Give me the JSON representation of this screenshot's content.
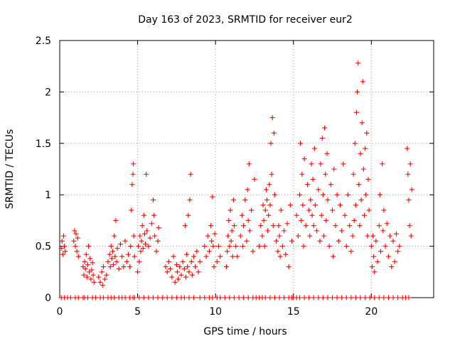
{
  "colors": {
    "series": "#ff0000",
    "axis": "#000000",
    "grid": "#a0a0a0",
    "background": "#ffffff"
  },
  "chart_data": {
    "type": "scatter",
    "title": "Day 163 of 2023, SRMTID for receiver eur2",
    "xlabel": "GPS time / hours",
    "ylabel": "SRMTID / TECUs",
    "xlim": [
      0,
      24
    ],
    "ylim": [
      0,
      2.5
    ],
    "xticks": [
      0,
      5,
      10,
      15,
      20
    ],
    "yticks": [
      0,
      0.5,
      1,
      1.5,
      2,
      2.5
    ],
    "xtick_labels": [
      "0",
      "5",
      "10",
      "15",
      "20"
    ],
    "ytick_labels": [
      "0",
      "0.5",
      "1",
      "1.5",
      "2",
      "2.5"
    ],
    "grid": true,
    "marker": "+",
    "series": [
      {
        "name": "SRMTID",
        "points": [
          [
            0.1,
            0.48
          ],
          [
            0.15,
            0.55
          ],
          [
            0.2,
            0.42
          ],
          [
            0.25,
            0.6
          ],
          [
            0.3,
            0.5
          ],
          [
            0.35,
            0.45
          ],
          [
            0.9,
            0.55
          ],
          [
            0.95,
            0.65
          ],
          [
            1.0,
            0.5
          ],
          [
            1.05,
            0.62
          ],
          [
            1.1,
            0.45
          ],
          [
            1.15,
            0.58
          ],
          [
            1.2,
            0.4
          ],
          [
            1.5,
            0.3
          ],
          [
            1.55,
            0.22
          ],
          [
            1.6,
            0.35
          ],
          [
            1.65,
            0.28
          ],
          [
            1.7,
            0.42
          ],
          [
            1.75,
            0.2
          ],
          [
            1.8,
            0.32
          ],
          [
            1.85,
            0.5
          ],
          [
            1.9,
            0.25
          ],
          [
            1.95,
            0.38
          ],
          [
            2.0,
            0.18
          ],
          [
            2.05,
            0.27
          ],
          [
            2.1,
            0.34
          ],
          [
            2.15,
            0.22
          ],
          [
            2.2,
            0.15
          ],
          [
            2.5,
            0.2
          ],
          [
            2.6,
            0.15
          ],
          [
            2.7,
            0.25
          ],
          [
            2.75,
            0.12
          ],
          [
            2.8,
            0.3
          ],
          [
            2.9,
            0.18
          ],
          [
            3.0,
            0.22
          ],
          [
            3.1,
            0.35
          ],
          [
            3.2,
            0.42
          ],
          [
            3.25,
            0.3
          ],
          [
            3.3,
            0.5
          ],
          [
            3.35,
            0.38
          ],
          [
            3.4,
            0.45
          ],
          [
            3.45,
            0.32
          ],
          [
            3.5,
            0.6
          ],
          [
            3.55,
            0.4
          ],
          [
            3.6,
            0.75
          ],
          [
            3.65,
            0.35
          ],
          [
            3.7,
            0.48
          ],
          [
            3.8,
            0.28
          ],
          [
            3.9,
            0.52
          ],
          [
            4.0,
            0.4
          ],
          [
            4.1,
            0.3
          ],
          [
            4.2,
            0.55
          ],
          [
            4.3,
            0.35
          ],
          [
            4.4,
            0.42
          ],
          [
            4.5,
            0.3
          ],
          [
            4.55,
            0.5
          ],
          [
            4.6,
            0.85
          ],
          [
            4.65,
            1.1
          ],
          [
            4.7,
            1.2
          ],
          [
            4.72,
            1.3
          ],
          [
            4.75,
            0.6
          ],
          [
            4.8,
            0.4
          ],
          [
            5.0,
            0.25
          ],
          [
            5.05,
            0.5
          ],
          [
            5.1,
            0.35
          ],
          [
            5.15,
            0.6
          ],
          [
            5.2,
            0.45
          ],
          [
            5.25,
            0.55
          ],
          [
            5.3,
            0.7
          ],
          [
            5.35,
            0.48
          ],
          [
            5.4,
            0.8
          ],
          [
            5.45,
            0.62
          ],
          [
            5.5,
            0.52
          ],
          [
            5.55,
            1.2
          ],
          [
            5.6,
            0.65
          ],
          [
            5.7,
            0.5
          ],
          [
            5.8,
            0.58
          ],
          [
            5.9,
            0.72
          ],
          [
            6.0,
            0.95
          ],
          [
            6.05,
            0.8
          ],
          [
            6.1,
            0.6
          ],
          [
            6.2,
            0.45
          ],
          [
            6.3,
            0.55
          ],
          [
            6.35,
            0.68
          ],
          [
            6.8,
            0.3
          ],
          [
            6.9,
            0.25
          ],
          [
            7.0,
            0.35
          ],
          [
            7.1,
            0.28
          ],
          [
            7.2,
            0.2
          ],
          [
            7.3,
            0.4
          ],
          [
            7.4,
            0.15
          ],
          [
            7.5,
            0.32
          ],
          [
            7.55,
            0.25
          ],
          [
            7.6,
            0.18
          ],
          [
            7.7,
            0.3
          ],
          [
            7.8,
            0.22
          ],
          [
            7.9,
            0.35
          ],
          [
            8.0,
            0.28
          ],
          [
            8.05,
            0.7
          ],
          [
            8.1,
            0.2
          ],
          [
            8.15,
            0.42
          ],
          [
            8.2,
            0.3
          ],
          [
            8.25,
            0.8
          ],
          [
            8.3,
            0.25
          ],
          [
            8.35,
            0.95
          ],
          [
            8.4,
            1.2
          ],
          [
            8.45,
            0.35
          ],
          [
            8.5,
            0.22
          ],
          [
            8.6,
            0.4
          ],
          [
            8.7,
            0.3
          ],
          [
            8.8,
            0.45
          ],
          [
            8.9,
            0.25
          ],
          [
            9.0,
            0.35
          ],
          [
            9.3,
            0.5
          ],
          [
            9.4,
            0.4
          ],
          [
            9.5,
            0.6
          ],
          [
            9.6,
            0.45
          ],
          [
            9.7,
            0.7
          ],
          [
            9.75,
            0.55
          ],
          [
            9.8,
            0.98
          ],
          [
            9.85,
            0.5
          ],
          [
            9.9,
            0.3
          ],
          [
            9.95,
            0.62
          ],
          [
            10.1,
            0.35
          ],
          [
            10.2,
            0.5
          ],
          [
            10.3,
            0.4
          ],
          [
            10.7,
            0.3
          ],
          [
            10.75,
            0.45
          ],
          [
            10.8,
            0.6
          ],
          [
            10.85,
            0.75
          ],
          [
            10.9,
            0.5
          ],
          [
            10.95,
            0.85
          ],
          [
            11.0,
            0.55
          ],
          [
            11.05,
            0.65
          ],
          [
            11.1,
            0.4
          ],
          [
            11.15,
            0.95
          ],
          [
            11.2,
            0.7
          ],
          [
            11.3,
            0.5
          ],
          [
            11.4,
            0.4
          ],
          [
            11.6,
            0.6
          ],
          [
            11.7,
            0.8
          ],
          [
            11.75,
            0.5
          ],
          [
            11.8,
            0.7
          ],
          [
            11.9,
            0.95
          ],
          [
            12.0,
            0.55
          ],
          [
            12.05,
            1.05
          ],
          [
            12.1,
            0.75
          ],
          [
            12.15,
            1.3
          ],
          [
            12.2,
            0.65
          ],
          [
            12.3,
            0.85
          ],
          [
            12.4,
            0.45
          ],
          [
            12.5,
            1.15
          ],
          [
            12.8,
            0.5
          ],
          [
            12.9,
            0.7
          ],
          [
            13.0,
            0.6
          ],
          [
            13.05,
            0.9
          ],
          [
            13.1,
            0.75
          ],
          [
            13.15,
            0.5
          ],
          [
            13.2,
            0.85
          ],
          [
            13.25,
            1.05
          ],
          [
            13.3,
            0.95
          ],
          [
            13.35,
            0.65
          ],
          [
            13.4,
            0.8
          ],
          [
            13.45,
            1.1
          ],
          [
            13.5,
            0.9
          ],
          [
            13.55,
            1.5
          ],
          [
            13.6,
            1.2
          ],
          [
            13.65,
            1.75
          ],
          [
            13.7,
            0.7
          ],
          [
            13.75,
            1.6
          ],
          [
            13.8,
            1.0
          ],
          [
            13.9,
            0.55
          ],
          [
            14.0,
            0.45
          ],
          [
            14.05,
            0.7
          ],
          [
            14.1,
            0.6
          ],
          [
            14.15,
            0.4
          ],
          [
            14.2,
            0.85
          ],
          [
            14.3,
            0.5
          ],
          [
            14.4,
            0.65
          ],
          [
            14.5,
            0.42
          ],
          [
            14.6,
            0.72
          ],
          [
            14.7,
            0.3
          ],
          [
            14.8,
            0.9
          ],
          [
            14.9,
            0.55
          ],
          [
            15.2,
            0.8
          ],
          [
            15.3,
            0.6
          ],
          [
            15.4,
            1.0
          ],
          [
            15.45,
            1.5
          ],
          [
            15.5,
            0.75
          ],
          [
            15.55,
            1.2
          ],
          [
            15.6,
            0.9
          ],
          [
            15.65,
            0.5
          ],
          [
            15.7,
            1.35
          ],
          [
            15.8,
            0.7
          ],
          [
            15.9,
            1.1
          ],
          [
            16.0,
            0.85
          ],
          [
            16.05,
            0.6
          ],
          [
            16.1,
            0.95
          ],
          [
            16.15,
            1.3
          ],
          [
            16.2,
            0.8
          ],
          [
            16.25,
            1.15
          ],
          [
            16.3,
            0.7
          ],
          [
            16.35,
            1.45
          ],
          [
            16.4,
            0.9
          ],
          [
            16.5,
            0.65
          ],
          [
            16.6,
            1.05
          ],
          [
            16.7,
            0.55
          ],
          [
            16.75,
            1.3
          ],
          [
            16.8,
            0.8
          ],
          [
            16.85,
            1.55
          ],
          [
            16.9,
            1.0
          ],
          [
            16.95,
            0.6
          ],
          [
            17.0,
            1.65
          ],
          [
            17.05,
            1.2
          ],
          [
            17.1,
            0.75
          ],
          [
            17.15,
            1.4
          ],
          [
            17.2,
            0.95
          ],
          [
            17.3,
            0.5
          ],
          [
            17.4,
            1.1
          ],
          [
            17.5,
            0.85
          ],
          [
            17.55,
            0.4
          ],
          [
            17.6,
            1.25
          ],
          [
            17.7,
            0.7
          ],
          [
            17.8,
            1.0
          ],
          [
            17.9,
            0.55
          ],
          [
            18.0,
            0.9
          ],
          [
            18.1,
            0.65
          ],
          [
            18.2,
            1.3
          ],
          [
            18.3,
            0.8
          ],
          [
            18.4,
            0.5
          ],
          [
            18.5,
            1.0
          ],
          [
            18.6,
            0.7
          ],
          [
            18.7,
            0.45
          ],
          [
            18.8,
            0.6
          ],
          [
            18.85,
            1.2
          ],
          [
            18.9,
            0.75
          ],
          [
            18.95,
            1.5
          ],
          [
            19.0,
            0.9
          ],
          [
            19.05,
            1.8
          ],
          [
            19.1,
            2.0
          ],
          [
            19.15,
            2.28
          ],
          [
            19.2,
            1.1
          ],
          [
            19.25,
            0.7
          ],
          [
            19.3,
            1.4
          ],
          [
            19.35,
            0.95
          ],
          [
            19.4,
            1.7
          ],
          [
            19.45,
            2.1
          ],
          [
            19.5,
            1.25
          ],
          [
            19.55,
            0.8
          ],
          [
            19.6,
            1.45
          ],
          [
            19.65,
            1.0
          ],
          [
            19.7,
            1.6
          ],
          [
            19.75,
            0.6
          ],
          [
            19.8,
            1.15
          ],
          [
            19.85,
            0.85
          ],
          [
            20.0,
            0.5
          ],
          [
            20.05,
            0.3
          ],
          [
            20.1,
            0.6
          ],
          [
            20.15,
            0.4
          ],
          [
            20.2,
            0.25
          ],
          [
            20.3,
            0.55
          ],
          [
            20.4,
            0.35
          ],
          [
            20.5,
            0.7
          ],
          [
            20.55,
            1.0
          ],
          [
            20.6,
            0.45
          ],
          [
            20.7,
            1.3
          ],
          [
            20.75,
            0.65
          ],
          [
            20.8,
            0.85
          ],
          [
            20.9,
            0.5
          ],
          [
            21.0,
            0.72
          ],
          [
            21.1,
            0.4
          ],
          [
            21.2,
            0.6
          ],
          [
            21.3,
            0.3
          ],
          [
            21.4,
            0.55
          ],
          [
            21.5,
            0.35
          ],
          [
            21.6,
            0.62
          ],
          [
            21.7,
            0.45
          ],
          [
            21.8,
            0.5
          ],
          [
            22.3,
            1.45
          ],
          [
            22.35,
            1.2
          ],
          [
            22.4,
            0.95
          ],
          [
            22.45,
            0.7
          ],
          [
            22.5,
            1.3
          ],
          [
            22.55,
            0.6
          ],
          [
            22.6,
            1.05
          ]
        ],
        "zero_points": [
          0.1,
          0.3,
          0.5,
          0.7,
          1.0,
          1.2,
          1.5,
          1.6,
          1.8,
          2.1,
          2.3,
          2.6,
          2.8,
          3.1,
          3.3,
          3.5,
          3.8,
          4.0,
          4.2,
          4.5,
          4.7,
          4.8,
          5.1,
          5.4,
          5.7,
          6.0,
          6.3,
          6.6,
          6.9,
          7.2,
          7.5,
          7.8,
          8.0,
          8.3,
          8.6,
          9.0,
          9.3,
          9.6,
          9.8,
          10.1,
          10.3,
          10.6,
          10.9,
          11.2,
          11.5,
          11.8,
          12.1,
          12.4,
          12.6,
          12.8,
          13.0,
          13.2,
          13.5,
          13.8,
          14.1,
          14.4,
          14.7,
          14.9,
          15.0,
          15.2,
          15.4,
          15.7,
          16.0,
          16.3,
          16.6,
          16.9,
          17.2,
          17.5,
          17.8,
          18.1,
          18.4,
          18.7,
          19.0,
          19.3,
          19.6,
          19.9,
          20.2,
          20.5,
          20.8,
          21.1,
          21.4,
          21.7,
          22.0,
          22.2,
          22.4
        ]
      }
    ]
  }
}
